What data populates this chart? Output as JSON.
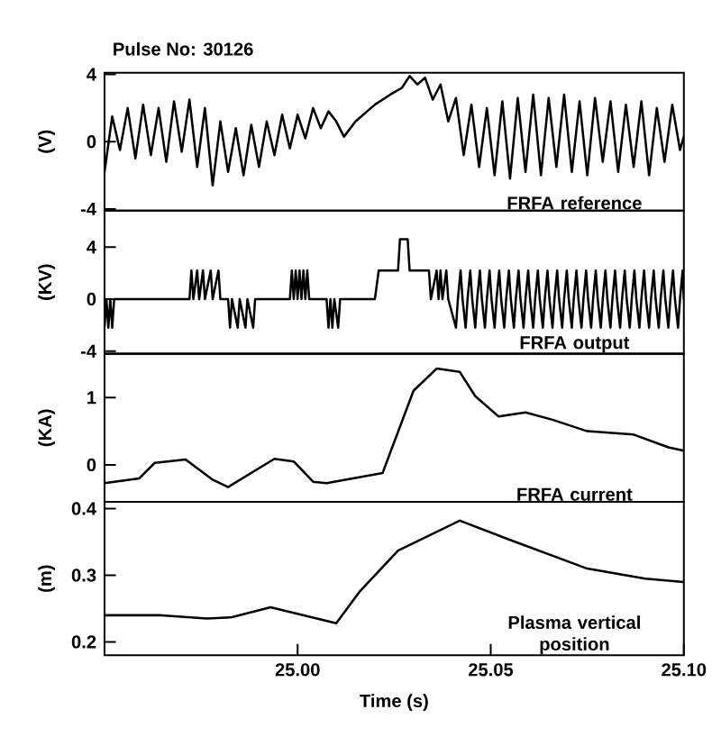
{
  "chart_data": [
    {
      "type": "line",
      "title": "Pulse No: 30126",
      "ylabel": "(V)",
      "annotations": [
        "FRFA reference"
      ],
      "color": "#000000",
      "tick_labels": "y",
      "xlim": [
        24.95,
        25.1
      ],
      "ylim": [
        -4.1,
        4.1
      ],
      "yticks": [
        -4,
        0,
        4
      ],
      "x": [
        24.95,
        24.952,
        24.954,
        24.956,
        24.958,
        24.96,
        24.962,
        24.964,
        24.966,
        24.968,
        24.97,
        24.972,
        24.974,
        24.976,
        24.978,
        24.98,
        24.982,
        24.984,
        24.986,
        24.988,
        24.99,
        24.992,
        24.994,
        24.996,
        24.998,
        25.0,
        25.002,
        25.004,
        25.006,
        25.008,
        25.01,
        25.012,
        25.015,
        25.02,
        25.024,
        25.027,
        25.029,
        25.031,
        25.033,
        25.035,
        25.037,
        25.039,
        25.041,
        25.043,
        25.045,
        25.047,
        25.049,
        25.051,
        25.053,
        25.055,
        25.057,
        25.059,
        25.061,
        25.063,
        25.065,
        25.067,
        25.069,
        25.071,
        25.073,
        25.075,
        25.077,
        25.079,
        25.081,
        25.083,
        25.085,
        25.087,
        25.089,
        25.091,
        25.093,
        25.095,
        25.097,
        25.099,
        25.1
      ],
      "values": [
        -1.8,
        1.5,
        -0.5,
        2.0,
        -1.0,
        2.2,
        -0.8,
        2.0,
        -1.2,
        2.4,
        -0.6,
        2.5,
        -1.5,
        2.0,
        -2.6,
        1.2,
        -1.8,
        0.8,
        -2.0,
        1.0,
        -1.5,
        1.2,
        -0.8,
        1.6,
        -0.4,
        1.6,
        0.2,
        2.0,
        0.8,
        1.8,
        1.2,
        0.3,
        1.2,
        2.2,
        2.8,
        3.2,
        3.9,
        3.4,
        3.8,
        2.5,
        3.4,
        1.2,
        2.6,
        -0.8,
        2.2,
        -1.5,
        2.0,
        -2.0,
        2.4,
        -2.2,
        2.6,
        -1.8,
        2.8,
        -2.0,
        2.6,
        -1.5,
        2.8,
        -1.8,
        2.4,
        -2.0,
        2.6,
        -1.2,
        2.4,
        -1.8,
        2.2,
        -1.5,
        2.4,
        -2.0,
        2.0,
        -1.2,
        2.2,
        -0.5,
        0.3
      ]
    },
    {
      "type": "line",
      "ylabel": "(KV)",
      "annotations": [
        "FRFA output"
      ],
      "color": "#000000",
      "tick_labels": "y",
      "xlim": [
        24.95,
        25.1
      ],
      "ylim": [
        -4.2,
        6.8
      ],
      "yticks": [
        -4,
        0,
        4
      ],
      "x": [
        24.95,
        24.9505,
        24.951,
        24.9515,
        24.952,
        24.9525,
        24.972,
        24.9725,
        24.973,
        24.974,
        24.9745,
        24.9755,
        24.976,
        24.9775,
        24.978,
        24.9795,
        24.98,
        24.982,
        24.9825,
        24.983,
        24.9845,
        24.985,
        24.9865,
        24.987,
        24.9885,
        24.989,
        24.998,
        24.9985,
        24.999,
        24.9995,
        25.0,
        25.0005,
        25.001,
        25.0015,
        25.002,
        25.0025,
        25.003,
        25.0075,
        25.008,
        25.0085,
        25.009,
        25.0095,
        25.0105,
        25.011,
        25.02,
        25.021,
        25.026,
        25.0265,
        25.0285,
        25.029,
        25.034,
        25.0345,
        25.036,
        25.0365,
        25.037,
        25.0375,
        25.0385,
        25.039,
        25.041,
        25.0415,
        25.0422,
        25.0427,
        25.0435,
        25.044,
        25.0447,
        25.0452,
        25.046,
        25.0465,
        25.0472,
        25.0477,
        25.0485,
        25.049,
        25.0497,
        25.0502,
        25.051,
        25.0515,
        25.0522,
        25.0527,
        25.0535,
        25.054,
        25.0547,
        25.0552,
        25.056,
        25.0565,
        25.0572,
        25.0577,
        25.0585,
        25.059,
        25.0597,
        25.0602,
        25.061,
        25.0615,
        25.0622,
        25.0627,
        25.0635,
        25.064,
        25.0647,
        25.0652,
        25.066,
        25.0665,
        25.0672,
        25.0677,
        25.0685,
        25.069,
        25.0697,
        25.0702,
        25.071,
        25.0715,
        25.0722,
        25.0727,
        25.0735,
        25.074,
        25.0747,
        25.0752,
        25.076,
        25.0765,
        25.0772,
        25.0777,
        25.0785,
        25.079,
        25.0797,
        25.0802,
        25.081,
        25.0815,
        25.0822,
        25.0827,
        25.0835,
        25.084,
        25.0847,
        25.0852,
        25.086,
        25.0865,
        25.0872,
        25.0877,
        25.0885,
        25.089,
        25.0897,
        25.0902,
        25.091,
        25.0915,
        25.0922,
        25.0927,
        25.0935,
        25.094,
        25.0947,
        25.0952,
        25.096,
        25.0965,
        25.0972,
        25.0977,
        25.0985,
        25.099,
        25.0997,
        25.1
      ],
      "values": [
        -2.2,
        0,
        -2.2,
        0,
        -2.2,
        0,
        0,
        2.2,
        0,
        2.2,
        0,
        2.2,
        0,
        2.2,
        0,
        2.2,
        0,
        0,
        -2.2,
        0,
        -2.2,
        0,
        -2.2,
        0,
        -2.2,
        0,
        0,
        2.2,
        0,
        2.2,
        0,
        2.2,
        0,
        2.2,
        0,
        2.2,
        0,
        0,
        -2.2,
        0,
        -2.2,
        0,
        -2.2,
        0,
        0,
        2.2,
        2.2,
        4.6,
        4.6,
        2.2,
        2.2,
        0,
        2.2,
        0,
        2.2,
        0,
        2.2,
        0,
        -2.2,
        0,
        2.2,
        0,
        -2.2,
        0,
        2.2,
        0,
        -2.2,
        0,
        2.2,
        0,
        -2.2,
        0,
        2.2,
        0,
        -2.2,
        0,
        2.2,
        0,
        -2.2,
        0,
        2.2,
        0,
        -2.2,
        0,
        2.2,
        0,
        -2.2,
        0,
        2.2,
        0,
        -2.2,
        0,
        2.2,
        0,
        -2.2,
        0,
        2.2,
        0,
        -2.2,
        0,
        2.2,
        0,
        -2.2,
        0,
        2.2,
        0,
        -2.2,
        0,
        2.2,
        0,
        -2.2,
        0,
        2.2,
        0,
        -2.2,
        0,
        2.2,
        0,
        -2.2,
        0,
        2.2,
        0,
        -2.2,
        0,
        2.2,
        0,
        -2.2,
        0,
        2.2,
        0,
        -2.2,
        0,
        2.2,
        0,
        -2.2,
        0,
        2.2,
        0,
        -2.2,
        0,
        2.2,
        0,
        -2.2,
        0,
        2.2,
        0,
        -2.2,
        0,
        2.2,
        0,
        -2.2,
        0,
        2.2,
        0
      ]
    },
    {
      "type": "line",
      "ylabel": "(KA)",
      "annotations": [
        "FRFA current"
      ],
      "color": "#000000",
      "tick_labels": "y",
      "xlim": [
        24.95,
        25.1
      ],
      "ylim": [
        -0.55,
        1.65
      ],
      "yticks": [
        0,
        1
      ],
      "x": [
        24.95,
        24.959,
        24.963,
        24.971,
        24.978,
        24.982,
        24.994,
        24.999,
        25.004,
        25.0075,
        25.022,
        25.03,
        25.036,
        25.042,
        25.046,
        25.052,
        25.059,
        25.066,
        25.075,
        25.087,
        25.096,
        25.1
      ],
      "values": [
        -0.27,
        -0.2,
        0.03,
        0.08,
        -0.22,
        -0.33,
        0.09,
        0.05,
        -0.25,
        -0.27,
        -0.12,
        1.1,
        1.43,
        1.38,
        1.02,
        0.72,
        0.78,
        0.67,
        0.5,
        0.45,
        0.26,
        0.21
      ]
    },
    {
      "type": "line",
      "ylabel": "(m)",
      "xlabel": "Time (s)",
      "annotations": [
        "Plasma vertical position"
      ],
      "color": "#000000",
      "xlim": [
        24.95,
        25.1
      ],
      "xticks": [
        {
          "value": 25.0,
          "label": "25.00"
        },
        {
          "value": 25.05,
          "label": "25.05"
        },
        {
          "value": 25.1,
          "label": "25.10"
        }
      ],
      "ylim": [
        0.18,
        0.41
      ],
      "yticks": [
        0.2,
        0.3,
        0.4
      ],
      "x": [
        24.95,
        24.964,
        24.9765,
        24.983,
        24.993,
        25.01,
        25.016,
        25.026,
        25.042,
        25.055,
        25.075,
        25.09,
        25.1
      ],
      "values": [
        0.24,
        0.24,
        0.235,
        0.237,
        0.252,
        0.228,
        0.275,
        0.337,
        0.382,
        0.353,
        0.31,
        0.295,
        0.29
      ]
    }
  ]
}
